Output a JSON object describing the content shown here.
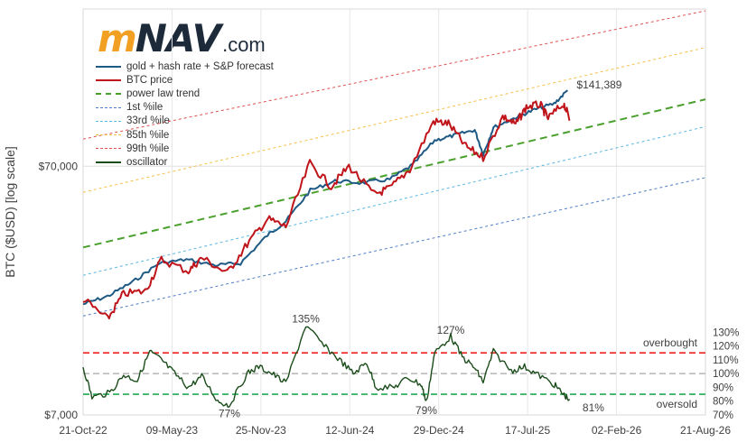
{
  "logo": {
    "m": "m",
    "nav": "NAV",
    "com": ".com"
  },
  "chart_data": {
    "type": "line",
    "title": "",
    "ylabel": "BTC ($USD) [log scale]",
    "y_scale": "log",
    "ylim": [
      7000,
      300000
    ],
    "y_ticks": [
      "$70,000",
      "$7,000"
    ],
    "x_ticks": [
      "21-Oct-22",
      "09-May-23",
      "25-Nov-23",
      "12-Jun-24",
      "29-Dec-24",
      "17-Jul-25",
      "02-Feb-26",
      "21-Aug-26"
    ],
    "xlim": [
      "2022-10-21",
      "2026-08-21"
    ],
    "legend_position": "top-left",
    "series": [
      {
        "name": "gold + hash rate + S&P forecast",
        "color": "#1f5a85",
        "style": "solid",
        "points": [
          [
            "2022-10-21",
            19500
          ],
          [
            "2022-12-15",
            21000
          ],
          [
            "2023-02-10",
            24000
          ],
          [
            "2023-04-10",
            28500
          ],
          [
            "2023-06-10",
            29500
          ],
          [
            "2023-08-15",
            28000
          ],
          [
            "2023-10-10",
            28500
          ],
          [
            "2023-12-10",
            37000
          ],
          [
            "2024-01-20",
            42000
          ],
          [
            "2024-03-15",
            56000
          ],
          [
            "2024-05-10",
            61000
          ],
          [
            "2024-07-10",
            60000
          ],
          [
            "2024-09-10",
            62000
          ],
          [
            "2024-11-01",
            71000
          ],
          [
            "2024-12-20",
            89000
          ],
          [
            "2025-02-01",
            93000
          ],
          [
            "2025-03-20",
            98000
          ],
          [
            "2025-04-08",
            78000
          ],
          [
            "2025-05-01",
            100000
          ],
          [
            "2025-06-20",
            110000
          ],
          [
            "2025-08-01",
            118000
          ],
          [
            "2025-09-15",
            125000
          ],
          [
            "2025-10-15",
            141389
          ]
        ]
      },
      {
        "name": "BTC price",
        "color": "#c0141b",
        "style": "solid",
        "points": [
          [
            "2022-10-21",
            20500
          ],
          [
            "2022-12-15",
            17000
          ],
          [
            "2023-01-20",
            21500
          ],
          [
            "2023-03-10",
            22000
          ],
          [
            "2023-04-15",
            29500
          ],
          [
            "2023-06-15",
            26500
          ],
          [
            "2023-07-15",
            30000
          ],
          [
            "2023-09-10",
            26000
          ],
          [
            "2023-10-25",
            34000
          ],
          [
            "2023-12-10",
            43000
          ],
          [
            "2024-01-20",
            40000
          ],
          [
            "2024-03-14",
            72000
          ],
          [
            "2024-05-01",
            58000
          ],
          [
            "2024-06-10",
            70000
          ],
          [
            "2024-08-05",
            54000
          ],
          [
            "2024-09-10",
            57000
          ],
          [
            "2024-10-25",
            68000
          ],
          [
            "2024-12-17",
            106000
          ],
          [
            "2025-01-20",
            104000
          ],
          [
            "2025-02-28",
            84000
          ],
          [
            "2025-04-08",
            76000
          ],
          [
            "2025-05-22",
            111000
          ],
          [
            "2025-06-20",
            103000
          ],
          [
            "2025-07-14",
            121000
          ],
          [
            "2025-08-14",
            124000
          ],
          [
            "2025-09-01",
            109000
          ],
          [
            "2025-10-06",
            125000
          ],
          [
            "2025-10-20",
            108000
          ]
        ]
      },
      {
        "name": "power law trend",
        "color": "#4aa02c",
        "style": "dashed",
        "points": [
          [
            "2022-10-21",
            33000
          ],
          [
            "2026-08-21",
            130000
          ]
        ]
      },
      {
        "name": "1st %ile",
        "color": "#4f7fc4",
        "style": "dotted",
        "points": [
          [
            "2022-10-21",
            17500
          ],
          [
            "2026-08-21",
            63000
          ]
        ]
      },
      {
        "name": "33rd %ile",
        "color": "#5bb8e0",
        "style": "dotted",
        "points": [
          [
            "2022-10-21",
            25500
          ],
          [
            "2026-08-21",
            101000
          ]
        ]
      },
      {
        "name": "85th %ile",
        "color": "#f5c04a",
        "style": "dotted",
        "points": [
          [
            "2022-10-21",
            55000
          ],
          [
            "2026-08-21",
            210000
          ]
        ]
      },
      {
        "name": "99th %ile",
        "color": "#e05050",
        "style": "dotted",
        "points": [
          [
            "2022-10-21",
            90000
          ],
          [
            "2026-08-21",
            295000
          ]
        ]
      }
    ],
    "oscillator": {
      "name": "oscillator",
      "color": "#1b4d1b",
      "y_scale": "linear",
      "ylim": [
        70,
        140
      ],
      "y_ticks": [
        "70%",
        "80%",
        "90%",
        "100%",
        "110%",
        "120%",
        "130%"
      ],
      "overbought_level": 115,
      "neutral_level": 100,
      "oversold_level": 85,
      "overbought_label": "overbought",
      "oversold_label": "oversold",
      "overbought_color": "#ee2222",
      "neutral_color": "#bbbbbb",
      "oversold_color": "#22aa55",
      "points": [
        [
          "2022-10-21",
          105
        ],
        [
          "2022-11-10",
          83
        ],
        [
          "2022-12-20",
          86
        ],
        [
          "2023-01-20",
          99
        ],
        [
          "2023-02-20",
          95
        ],
        [
          "2023-03-20",
          116
        ],
        [
          "2023-04-15",
          110
        ],
        [
          "2023-05-15",
          100
        ],
        [
          "2023-06-15",
          90
        ],
        [
          "2023-07-15",
          98
        ],
        [
          "2023-08-20",
          80
        ],
        [
          "2023-09-15",
          77
        ],
        [
          "2023-10-25",
          100
        ],
        [
          "2023-11-20",
          105
        ],
        [
          "2023-12-20",
          100
        ],
        [
          "2024-01-20",
          93
        ],
        [
          "2024-03-05",
          135
        ],
        [
          "2024-04-15",
          120
        ],
        [
          "2024-05-20",
          110
        ],
        [
          "2024-06-20",
          100
        ],
        [
          "2024-07-20",
          108
        ],
        [
          "2024-08-10",
          90
        ],
        [
          "2024-09-20",
          90
        ],
        [
          "2024-10-20",
          97
        ],
        [
          "2024-11-20",
          92
        ],
        [
          "2024-12-01",
          79
        ],
        [
          "2024-12-20",
          115
        ],
        [
          "2025-01-25",
          127
        ],
        [
          "2025-02-20",
          112
        ],
        [
          "2025-03-20",
          104
        ],
        [
          "2025-04-08",
          94
        ],
        [
          "2025-05-01",
          116
        ],
        [
          "2025-06-10",
          102
        ],
        [
          "2025-07-10",
          105
        ],
        [
          "2025-08-10",
          99
        ],
        [
          "2025-09-15",
          92
        ],
        [
          "2025-10-05",
          85
        ],
        [
          "2025-10-20",
          81
        ]
      ],
      "annotations": [
        {
          "date": "2023-09-15",
          "value": 77,
          "label": "77%"
        },
        {
          "date": "2024-03-05",
          "value": 135,
          "label": "135%"
        },
        {
          "date": "2024-12-01",
          "value": 79,
          "label": "79%"
        },
        {
          "date": "2025-01-25",
          "value": 127,
          "label": "127%"
        },
        {
          "date": "2025-10-20",
          "value": 81,
          "label": "81%"
        }
      ]
    },
    "annotations": [
      {
        "date": "2025-10-15",
        "value": 141389,
        "label": "$141,389"
      }
    ]
  }
}
